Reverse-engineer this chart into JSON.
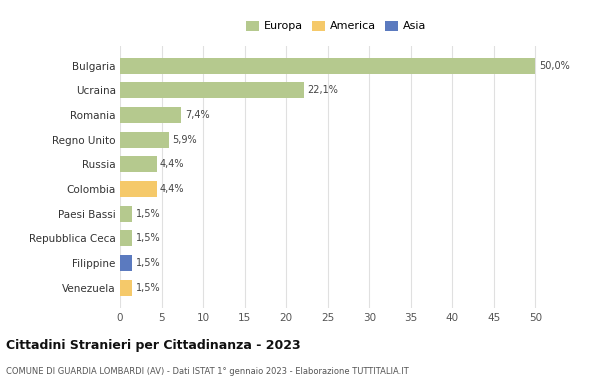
{
  "categories": [
    "Bulgaria",
    "Ucraina",
    "Romania",
    "Regno Unito",
    "Russia",
    "Colombia",
    "Paesi Bassi",
    "Repubblica Ceca",
    "Filippine",
    "Venezuela"
  ],
  "values": [
    50.0,
    22.1,
    7.4,
    5.9,
    4.4,
    4.4,
    1.5,
    1.5,
    1.5,
    1.5
  ],
  "labels": [
    "50,0%",
    "22,1%",
    "7,4%",
    "5,9%",
    "4,4%",
    "4,4%",
    "1,5%",
    "1,5%",
    "1,5%",
    "1,5%"
  ],
  "colors": [
    "#b5c98e",
    "#b5c98e",
    "#b5c98e",
    "#b5c98e",
    "#b5c98e",
    "#f5c96a",
    "#b5c98e",
    "#b5c98e",
    "#5b7abf",
    "#f5c96a"
  ],
  "legend_labels": [
    "Europa",
    "America",
    "Asia"
  ],
  "legend_colors": [
    "#b5c98e",
    "#f5c96a",
    "#5b7abf"
  ],
  "title": "Cittadini Stranieri per Cittadinanza - 2023",
  "subtitle": "COMUNE DI GUARDIA LOMBARDI (AV) - Dati ISTAT 1° gennaio 2023 - Elaborazione TUTTITALIA.IT",
  "xlim": [
    0,
    52
  ],
  "xticks": [
    0,
    5,
    10,
    15,
    20,
    25,
    30,
    35,
    40,
    45,
    50
  ],
  "bg_color": "#ffffff",
  "grid_color": "#e0e0e0",
  "bar_height": 0.65
}
